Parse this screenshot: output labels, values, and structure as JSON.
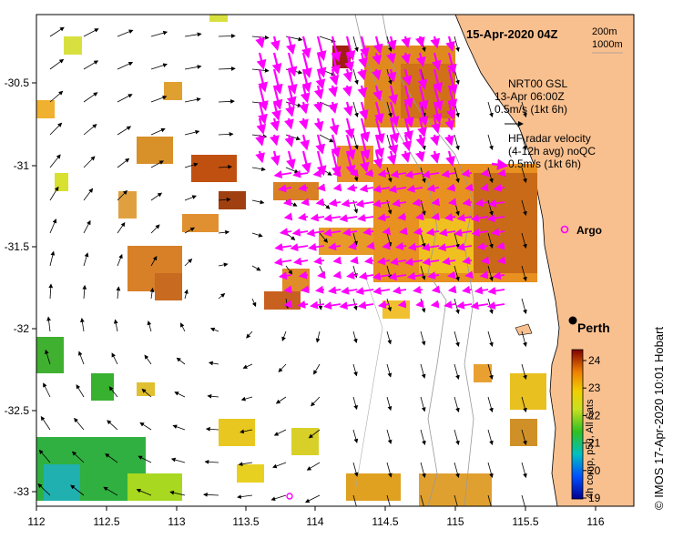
{
  "title": "15-Apr-2020 04Z",
  "depth_legend": [
    "200m",
    "1000m"
  ],
  "model_legend": {
    "line1": "NRT00 GSL",
    "line2": "13-Apr 06:00Z",
    "line3": "0.5m/s (1kt 6h)"
  },
  "radar_legend": {
    "line1": "HF radar velocity",
    "line2": "(4-12h avg) noQC",
    "line3": "0.5m/s (1kt 6h)"
  },
  "argo_label": "Argo",
  "city_label": "Perth",
  "colorbar": {
    "title": "4h comp, p50, All Sats",
    "ticks": [
      "24",
      "23",
      "22",
      "21",
      "20",
      "19"
    ]
  },
  "credit": "© IMOS 17-Apr-2020 10:01 Hobart",
  "x_ticks": [
    "112",
    "112.5",
    "113",
    "113.5",
    "114",
    "114.5",
    "115",
    "115.5",
    "116"
  ],
  "y_ticks": [
    "-30.5",
    "-31",
    "-31.5",
    "-32",
    "-32.5",
    "-33"
  ],
  "colors": {
    "land": "#f9c08f",
    "radar_arrow": "#ff00ff",
    "model_arrow": "#000000"
  }
}
